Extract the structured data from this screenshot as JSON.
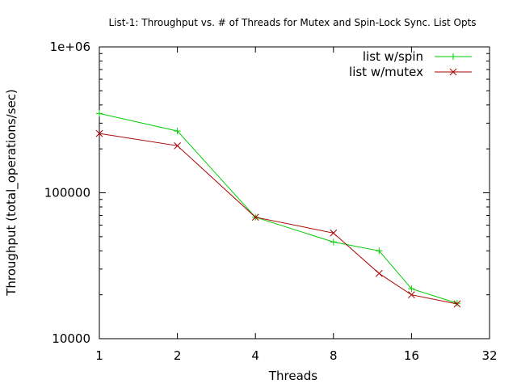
{
  "chart_data": {
    "type": "line",
    "title": "List-1: Throughput vs. # of Threads for Mutex and Spin-Lock Sync. List Opts",
    "xlabel": "Threads",
    "ylabel": "Throughput (total_operations/sec)",
    "x_scale": "log2",
    "y_scale": "log10",
    "xlim": [
      1,
      32
    ],
    "ylim": [
      10000,
      1000000
    ],
    "x_ticks": [
      1,
      2,
      4,
      8,
      16,
      32
    ],
    "x_tick_labels": [
      "1",
      "2",
      "4",
      "8",
      "16",
      "32"
    ],
    "y_ticks": [
      10000,
      100000,
      1000000
    ],
    "y_tick_labels": [
      "10000",
      "100000",
      "1e+06"
    ],
    "grid": false,
    "legend_position": "top-right",
    "series": [
      {
        "name": "list w/spin",
        "color": "#00cc00",
        "marker": "plus",
        "x": [
          1,
          2,
          4,
          8,
          12,
          16,
          24
        ],
        "y": [
          350000,
          265000,
          68000,
          46000,
          40000,
          22000,
          17500
        ]
      },
      {
        "name": "list w/mutex",
        "color": "#aa0000",
        "marker": "cross",
        "x": [
          1,
          2,
          4,
          8,
          12,
          16,
          24
        ],
        "y": [
          255000,
          210000,
          68000,
          53000,
          28000,
          20000,
          17300
        ]
      }
    ]
  }
}
